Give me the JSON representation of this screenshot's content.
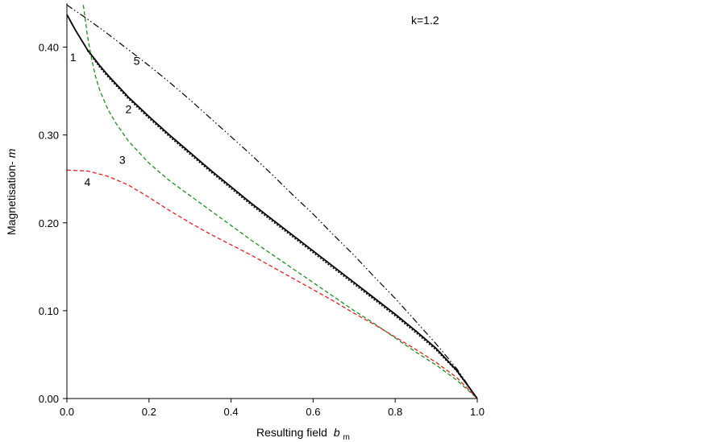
{
  "chart_data": {
    "type": "line",
    "title": "",
    "annotation": "k=1.2",
    "xlabel": "Resulting field",
    "xlabel_symbol": "b",
    "xlabel_subscript": "m",
    "ylabel": "Magnetisation-",
    "ylabel_symbol": "m",
    "xlim": [
      0.0,
      1.0
    ],
    "ylim": [
      0.0,
      0.45
    ],
    "xticks": [
      0.0,
      0.2,
      0.4,
      0.6,
      0.8,
      1.0
    ],
    "xtick_labels": [
      "0.0",
      "0.2",
      "0.4",
      "0.6",
      "0.8",
      "1.0"
    ],
    "yticks": [
      0.0,
      0.1,
      0.2,
      0.3,
      0.4
    ],
    "ytick_labels": [
      "0.00",
      "0.10",
      "0.20",
      "0.30",
      "0.40"
    ],
    "grid": false,
    "legend": "none",
    "series": [
      {
        "name": "1",
        "color": "#000000",
        "style": "solid",
        "x": [
          0.0,
          0.02,
          0.05,
          0.08,
          0.1,
          0.15,
          0.2,
          0.25,
          0.3,
          0.35,
          0.4,
          0.45,
          0.5,
          0.55,
          0.6,
          0.65,
          0.7,
          0.75,
          0.8,
          0.85,
          0.9,
          0.95,
          1.0
        ],
        "y": [
          0.437,
          0.42,
          0.397,
          0.379,
          0.368,
          0.343,
          0.321,
          0.3,
          0.28,
          0.26,
          0.241,
          0.222,
          0.204,
          0.186,
          0.168,
          0.15,
          0.132,
          0.114,
          0.096,
          0.077,
          0.057,
          0.032,
          0.0
        ]
      },
      {
        "name": "2",
        "color": "#000000",
        "style": "dotted",
        "x": [
          0.05,
          0.08,
          0.1,
          0.15,
          0.2,
          0.25,
          0.3,
          0.35,
          0.4,
          0.45,
          0.5,
          0.55,
          0.6,
          0.65,
          0.7,
          0.75,
          0.8,
          0.85,
          0.9,
          0.95,
          1.0
        ],
        "y": [
          0.396,
          0.377,
          0.366,
          0.341,
          0.319,
          0.298,
          0.278,
          0.258,
          0.239,
          0.22,
          0.202,
          0.184,
          0.166,
          0.148,
          0.13,
          0.112,
          0.094,
          0.075,
          0.055,
          0.031,
          0.0
        ]
      },
      {
        "name": "3",
        "color": "#1f8f1f",
        "style": "dashed",
        "x": [
          0.04,
          0.05,
          0.06,
          0.07,
          0.08,
          0.1,
          0.12,
          0.15,
          0.2,
          0.25,
          0.3,
          0.35,
          0.4,
          0.45,
          0.5,
          0.55,
          0.6,
          0.65,
          0.7,
          0.75,
          0.8,
          0.85,
          0.9,
          0.95,
          1.0
        ],
        "y": [
          0.448,
          0.413,
          0.387,
          0.366,
          0.351,
          0.329,
          0.313,
          0.293,
          0.268,
          0.248,
          0.231,
          0.214,
          0.197,
          0.18,
          0.164,
          0.148,
          0.132,
          0.116,
          0.1,
          0.085,
          0.069,
          0.053,
          0.038,
          0.021,
          0.0
        ]
      },
      {
        "name": "4",
        "color": "#e02020",
        "style": "dashed",
        "x": [
          0.0,
          0.05,
          0.1,
          0.15,
          0.2,
          0.25,
          0.3,
          0.35,
          0.4,
          0.45,
          0.5,
          0.55,
          0.6,
          0.65,
          0.7,
          0.75,
          0.8,
          0.85,
          0.9,
          0.95,
          1.0
        ],
        "y": [
          0.26,
          0.259,
          0.253,
          0.243,
          0.229,
          0.214,
          0.2,
          0.187,
          0.175,
          0.163,
          0.15,
          0.137,
          0.124,
          0.111,
          0.097,
          0.084,
          0.07,
          0.056,
          0.041,
          0.024,
          0.0
        ]
      },
      {
        "name": "5",
        "color": "#000000",
        "style": "dashdotdot",
        "x": [
          0.0,
          0.05,
          0.1,
          0.15,
          0.2,
          0.25,
          0.3,
          0.35,
          0.4,
          0.45,
          0.5,
          0.55,
          0.6,
          0.65,
          0.7,
          0.75,
          0.8,
          0.85,
          0.9,
          0.95,
          1.0
        ],
        "y": [
          0.448,
          0.432,
          0.415,
          0.397,
          0.379,
          0.36,
          0.34,
          0.319,
          0.298,
          0.277,
          0.255,
          0.232,
          0.21,
          0.186,
          0.163,
          0.138,
          0.114,
          0.088,
          0.062,
          0.034,
          0.0
        ]
      }
    ],
    "curve_labels": [
      {
        "text": "1",
        "x": 0.015,
        "y": 0.384
      },
      {
        "text": "5",
        "x": 0.17,
        "y": 0.38
      },
      {
        "text": "2",
        "x": 0.15,
        "y": 0.325
      },
      {
        "text": "3",
        "x": 0.135,
        "y": 0.267
      },
      {
        "text": "4",
        "x": 0.05,
        "y": 0.242
      }
    ]
  }
}
